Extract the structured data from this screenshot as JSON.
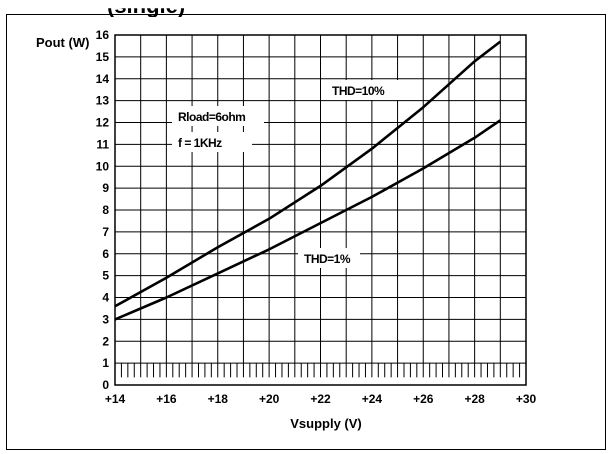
{
  "figure": {
    "caption_fragment": "(single)"
  },
  "chart_data": {
    "type": "line",
    "ylabel": "Pout (W)",
    "xlabel": "Vsupply (V)",
    "xlim": [
      14,
      30
    ],
    "ylim": [
      0,
      16
    ],
    "x_ticks": [
      "+14",
      "+16",
      "+18",
      "+20",
      "+22",
      "+24",
      "+26",
      "+28",
      "+30"
    ],
    "y_ticks": [
      "0",
      "1",
      "2",
      "3",
      "4",
      "5",
      "6",
      "7",
      "8",
      "9",
      "10",
      "11",
      "12",
      "13",
      "14",
      "15",
      "16"
    ],
    "grid": true,
    "series": [
      {
        "name": "THD=10%",
        "x": [
          14,
          16,
          18,
          20,
          22,
          24,
          26,
          28,
          29
        ],
        "y": [
          3.6,
          4.9,
          6.3,
          7.6,
          9.1,
          10.8,
          12.7,
          14.8,
          15.7
        ]
      },
      {
        "name": "THD=1%",
        "x": [
          14,
          16,
          18,
          20,
          22,
          24,
          26,
          28,
          29
        ],
        "y": [
          3.0,
          4.0,
          5.1,
          6.2,
          7.4,
          8.6,
          9.9,
          11.3,
          12.1
        ]
      }
    ],
    "annotations": {
      "load": "Rload=6ohm",
      "frequency": "f = 1KHz",
      "thd10": "THD=10%",
      "thd1": "THD=1%"
    }
  }
}
